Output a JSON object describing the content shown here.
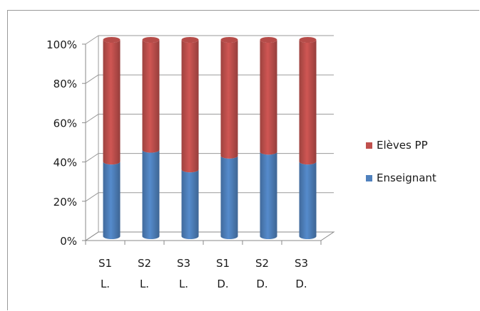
{
  "chart_data": {
    "type": "bar",
    "stacked": true,
    "percent": true,
    "categories": [
      [
        "S1",
        "L."
      ],
      [
        "S2",
        "L."
      ],
      [
        "S3",
        "L."
      ],
      [
        "S1",
        "D."
      ],
      [
        "S2",
        "D."
      ],
      [
        "S3",
        "D."
      ]
    ],
    "series": [
      {
        "name": "Enseignant",
        "color": "#4f81bd",
        "values": [
          38,
          44,
          34,
          41,
          43,
          38
        ]
      },
      {
        "name": "Elèves PP",
        "color": "#c0504d",
        "values": [
          62,
          56,
          66,
          59,
          57,
          62
        ]
      }
    ],
    "yticks": [
      "0%",
      "20%",
      "40%",
      "60%",
      "80%",
      "100%"
    ],
    "ylim": [
      0,
      100
    ],
    "grid": true,
    "legend": "right",
    "title": "",
    "xlabel": "",
    "ylabel": ""
  },
  "legend": {
    "items": [
      {
        "label": "Elèves PP",
        "color": "#c0504d"
      },
      {
        "label": "Enseignant",
        "color": "#4f81bd"
      }
    ]
  }
}
